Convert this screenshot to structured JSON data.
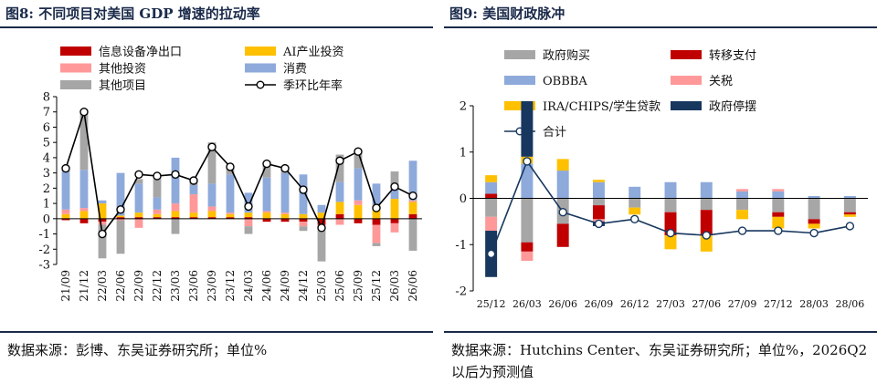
{
  "panels": [
    {
      "title": "图8:  不同项目对美国 GDP 增速的拉动率",
      "source": "数据来源：彭博、东吴证券研究所；单位%",
      "chart_data": {
        "type": "bar",
        "stacked": true,
        "legend_placement": "top",
        "grid": false,
        "categories": [
          "21/09",
          "21/12",
          "22/03",
          "22/06",
          "22/09",
          "22/12",
          "23/03",
          "23/06",
          "23/09",
          "23/12",
          "24/03",
          "24/06",
          "24/09",
          "24/12",
          "25/03",
          "25/06",
          "25/09",
          "25/12",
          "26/03",
          "26/06"
        ],
        "ylim": [
          -3,
          8
        ],
        "yticks": [
          -3,
          -2,
          -1,
          0,
          1,
          2,
          3,
          4,
          5,
          6,
          7,
          8
        ],
        "series": [
          {
            "name": "信息设备净出口",
            "kind": "bar",
            "color": "#c00000",
            "values": [
              -0.1,
              -0.3,
              -0.2,
              0.1,
              0.1,
              0.1,
              0.1,
              0.1,
              0.1,
              0.1,
              0.1,
              -0.2,
              -0.2,
              -0.2,
              -0.4,
              0.3,
              -0.3,
              -0.4,
              -0.3,
              0.3
            ]
          },
          {
            "name": "AI产业投资",
            "kind": "bar",
            "color": "#ffc000",
            "values": [
              0.3,
              0.5,
              1.0,
              0.1,
              0.3,
              0.2,
              0.4,
              0.3,
              0.4,
              0.2,
              0.3,
              0.4,
              0.3,
              0.3,
              0.4,
              0.8,
              0.9,
              0.9,
              1.3,
              0.8
            ]
          },
          {
            "name": "其他投资",
            "kind": "bar",
            "color": "#ff9999",
            "values": [
              0.3,
              0.2,
              -0.2,
              -0.1,
              -0.6,
              0.3,
              0.5,
              1.2,
              0.3,
              0.1,
              -0.5,
              0.1,
              0.1,
              -0.3,
              -0.3,
              -0.4,
              0.3,
              -1.2,
              -0.6,
              0.1
            ]
          },
          {
            "name": "消费",
            "kind": "bar",
            "color": "#8eaadb",
            "values": [
              2.5,
              2.5,
              0.2,
              2.8,
              1.9,
              0.8,
              3.0,
              0.6,
              1.5,
              2.5,
              1.3,
              2.2,
              2.6,
              2.6,
              0.5,
              1.3,
              2.1,
              1.4,
              0.8,
              2.6
            ]
          },
          {
            "name": "其他项目",
            "kind": "bar",
            "color": "#a6a6a6",
            "values": [
              0.3,
              3.9,
              -2.2,
              -2.2,
              0.3,
              1.3,
              -1.0,
              0.3,
              2.7,
              0.5,
              -0.5,
              0.9,
              0.4,
              -0.3,
              -2.1,
              1.8,
              1.2,
              -0.2,
              1.0,
              -2.1
            ]
          },
          {
            "name": "季环比年率",
            "kind": "line",
            "color": "#000000",
            "values": [
              3.3,
              7.0,
              -1.0,
              0.6,
              2.9,
              2.8,
              2.9,
              2.5,
              4.7,
              3.4,
              0.8,
              3.6,
              3.3,
              1.9,
              -0.6,
              3.8,
              4.4,
              0.7,
              2.1,
              1.5
            ]
          }
        ]
      }
    },
    {
      "title": "图9:  美国财政脉冲",
      "source": "数据来源：Hutchins Center、东吴证券研究所；单位%，2026Q2 以后为预测值",
      "chart_data": {
        "type": "bar",
        "stacked": true,
        "legend_placement": "top",
        "grid": false,
        "categories": [
          "25/12",
          "26/03",
          "26/06",
          "26/09",
          "26/12",
          "27/03",
          "27/06",
          "27/09",
          "27/12",
          "28/03",
          "28/06"
        ],
        "ylim": [
          -2,
          2
        ],
        "yticks": [
          -2,
          -1,
          0,
          1,
          2
        ],
        "series": [
          {
            "name": "政府购买",
            "kind": "bar",
            "color": "#a6a6a6",
            "values": [
              -0.4,
              -0.95,
              -0.55,
              -0.15,
              -0.2,
              -0.3,
              -0.25,
              -0.25,
              -0.3,
              -0.45,
              -0.3
            ]
          },
          {
            "name": "转移支付",
            "kind": "bar",
            "color": "#c00000",
            "values": [
              0.1,
              -0.2,
              -0.5,
              -0.3,
              0,
              -0.5,
              -0.55,
              0,
              -0.1,
              -0.1,
              -0.05
            ]
          },
          {
            "name": "OBBBA",
            "kind": "bar",
            "color": "#8eaadb",
            "values": [
              0.25,
              0.75,
              0.6,
              0.35,
              0.25,
              0.35,
              0.35,
              0.15,
              0.15,
              0.05,
              0.05
            ]
          },
          {
            "name": "关税",
            "kind": "bar",
            "color": "#ff9999",
            "values": [
              -0.3,
              -0.2,
              0,
              -0.05,
              0,
              0,
              0,
              0.05,
              0.05,
              0,
              0
            ]
          },
          {
            "name": "IRA/CHIPS/学生贷款",
            "kind": "bar",
            "color": "#ffc000",
            "values": [
              0.15,
              0.15,
              0.25,
              0.05,
              -0.15,
              -0.3,
              -0.35,
              -0.2,
              -0.25,
              -0.1,
              -0.05
            ]
          },
          {
            "name": "政府停摆",
            "kind": "bar",
            "color": "#17375e",
            "values": [
              -1.0,
              1.2,
              0,
              -0.1,
              0,
              0,
              0,
              0,
              0,
              0,
              0
            ]
          },
          {
            "name": "合计",
            "kind": "line",
            "color": "#17375e",
            "values": [
              -1.2,
              0.8,
              -0.3,
              -0.55,
              -0.45,
              -0.75,
              -0.8,
              -0.7,
              -0.7,
              -0.75,
              -0.6
            ]
          }
        ]
      }
    }
  ]
}
